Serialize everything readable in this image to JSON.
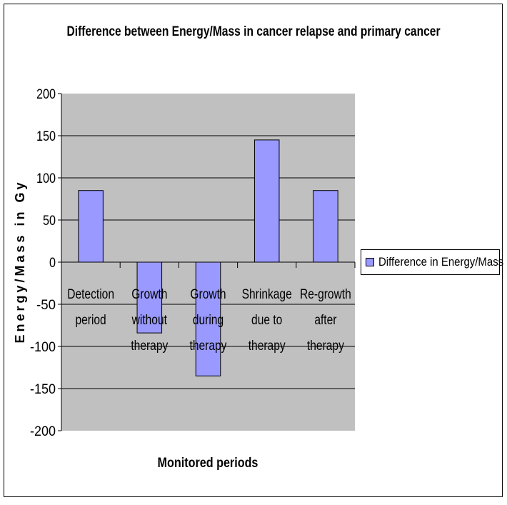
{
  "chart_data": {
    "type": "bar",
    "title": "Difference between Energy/Mass in cancer relapse and primary cancer",
    "xlabel": "Monitored periods",
    "ylabel": "Energy/Mass in Gy",
    "categories": [
      [
        "Detection",
        "period"
      ],
      [
        "Growth",
        "without",
        "therapy"
      ],
      [
        "Growth",
        "during",
        "therapy"
      ],
      [
        "Shrinkage",
        "due to",
        "therapy"
      ],
      [
        "Re-growth",
        "after",
        "therapy"
      ]
    ],
    "series": [
      {
        "name": "Difference in Energy/Mass",
        "values": [
          85,
          -84,
          -135,
          145,
          85
        ],
        "color": "#9999ff"
      }
    ],
    "ylim": [
      -200,
      200
    ],
    "yticks": [
      "200",
      "150",
      "100",
      "50",
      "0",
      "-50",
      "-100",
      "-150",
      "-200"
    ],
    "grid": true,
    "plot_background": "#c0c0c0",
    "legend": "right"
  }
}
